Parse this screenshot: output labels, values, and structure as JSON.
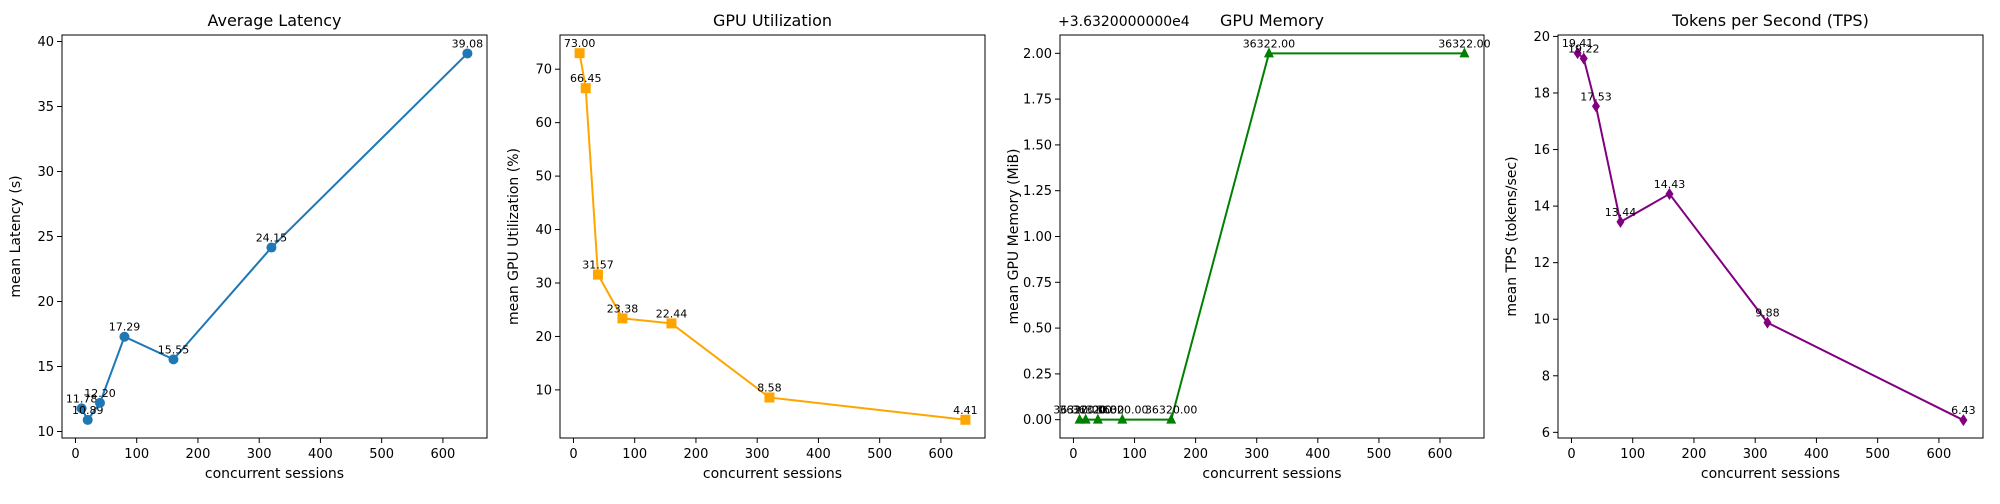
{
  "chart_data": [
    {
      "type": "line",
      "title": "Average Latency",
      "xlabel": "concurrent sessions",
      "ylabel": "mean Latency (s)",
      "x": [
        10,
        20,
        40,
        80,
        160,
        320,
        640
      ],
      "values": [
        11.78,
        10.89,
        12.2,
        17.29,
        15.55,
        24.15,
        39.08
      ],
      "data_labels": [
        "11.78",
        "10.89",
        "12.20",
        "17.29",
        "15.55",
        "24.15",
        "39.08"
      ],
      "marker": "circle",
      "color": "#1f77b4",
      "xlim": [
        -22,
        672
      ],
      "ylim": [
        9.5,
        40.5
      ],
      "xticks": [
        0,
        100,
        200,
        300,
        400,
        500,
        600
      ],
      "yticks": [
        10,
        15,
        20,
        25,
        30,
        35,
        40
      ],
      "ytick_labels": [
        "10",
        "15",
        "20",
        "25",
        "30",
        "35",
        "40"
      ],
      "offset_text": "",
      "grid": false
    },
    {
      "type": "line",
      "title": "GPU Utilization",
      "xlabel": "concurrent sessions",
      "ylabel": "mean GPU Utilization (%)",
      "x": [
        10,
        20,
        40,
        80,
        160,
        320,
        640
      ],
      "values": [
        73.0,
        66.45,
        31.57,
        23.38,
        22.44,
        8.58,
        4.41
      ],
      "data_labels": [
        "73.00",
        "66.45",
        "31.57",
        "23.38",
        "22.44",
        "8.58",
        "4.41"
      ],
      "marker": "square",
      "color": "#ffa500",
      "xlim": [
        -22,
        672
      ],
      "ylim": [
        1.0,
        76.4
      ],
      "xticks": [
        0,
        100,
        200,
        300,
        400,
        500,
        600
      ],
      "yticks": [
        10,
        20,
        30,
        40,
        50,
        60,
        70
      ],
      "ytick_labels": [
        "10",
        "20",
        "30",
        "40",
        "50",
        "60",
        "70"
      ],
      "offset_text": "",
      "grid": false
    },
    {
      "type": "line",
      "title": "GPU Memory",
      "xlabel": "concurrent sessions",
      "ylabel": "mean GPU Memory (MiB)",
      "x": [
        10,
        20,
        40,
        80,
        160,
        320,
        640
      ],
      "values": [
        0,
        0,
        0,
        0,
        0,
        2,
        2
      ],
      "data_labels": [
        "36320.00",
        "36320.00",
        "36320.00",
        "36320.00",
        "36320.00",
        "36322.00",
        "36322.00"
      ],
      "marker": "triangle",
      "color": "#008000",
      "xlim": [
        -22,
        672
      ],
      "ylim": [
        -0.1,
        2.1
      ],
      "xticks": [
        0,
        100,
        200,
        300,
        400,
        500,
        600
      ],
      "yticks": [
        0,
        0.25,
        0.5,
        0.75,
        1.0,
        1.25,
        1.5,
        1.75,
        2.0
      ],
      "ytick_labels": [
        "0.00",
        "0.25",
        "0.50",
        "0.75",
        "1.00",
        "1.25",
        "1.50",
        "1.75",
        "2.00"
      ],
      "offset_text": "+3.6320000000e4",
      "grid": false
    },
    {
      "type": "line",
      "title": "Tokens per Second (TPS)",
      "xlabel": "concurrent sessions",
      "ylabel": "mean TPS (tokens/sec)",
      "x": [
        10,
        20,
        40,
        80,
        160,
        320,
        640
      ],
      "values": [
        19.41,
        19.22,
        17.53,
        13.44,
        14.43,
        9.88,
        6.43
      ],
      "data_labels": [
        "19.41",
        "19.22",
        "17.53",
        "13.44",
        "14.43",
        "9.88",
        "6.43"
      ],
      "marker": "diamond",
      "color": "#800080",
      "xlim": [
        -22,
        672
      ],
      "ylim": [
        5.8,
        20.05
      ],
      "xticks": [
        0,
        100,
        200,
        300,
        400,
        500,
        600
      ],
      "yticks": [
        6,
        8,
        10,
        12,
        14,
        16,
        18,
        20
      ],
      "ytick_labels": [
        "6",
        "8",
        "10",
        "12",
        "14",
        "16",
        "18",
        "20"
      ],
      "offset_text": "",
      "grid": false
    }
  ]
}
